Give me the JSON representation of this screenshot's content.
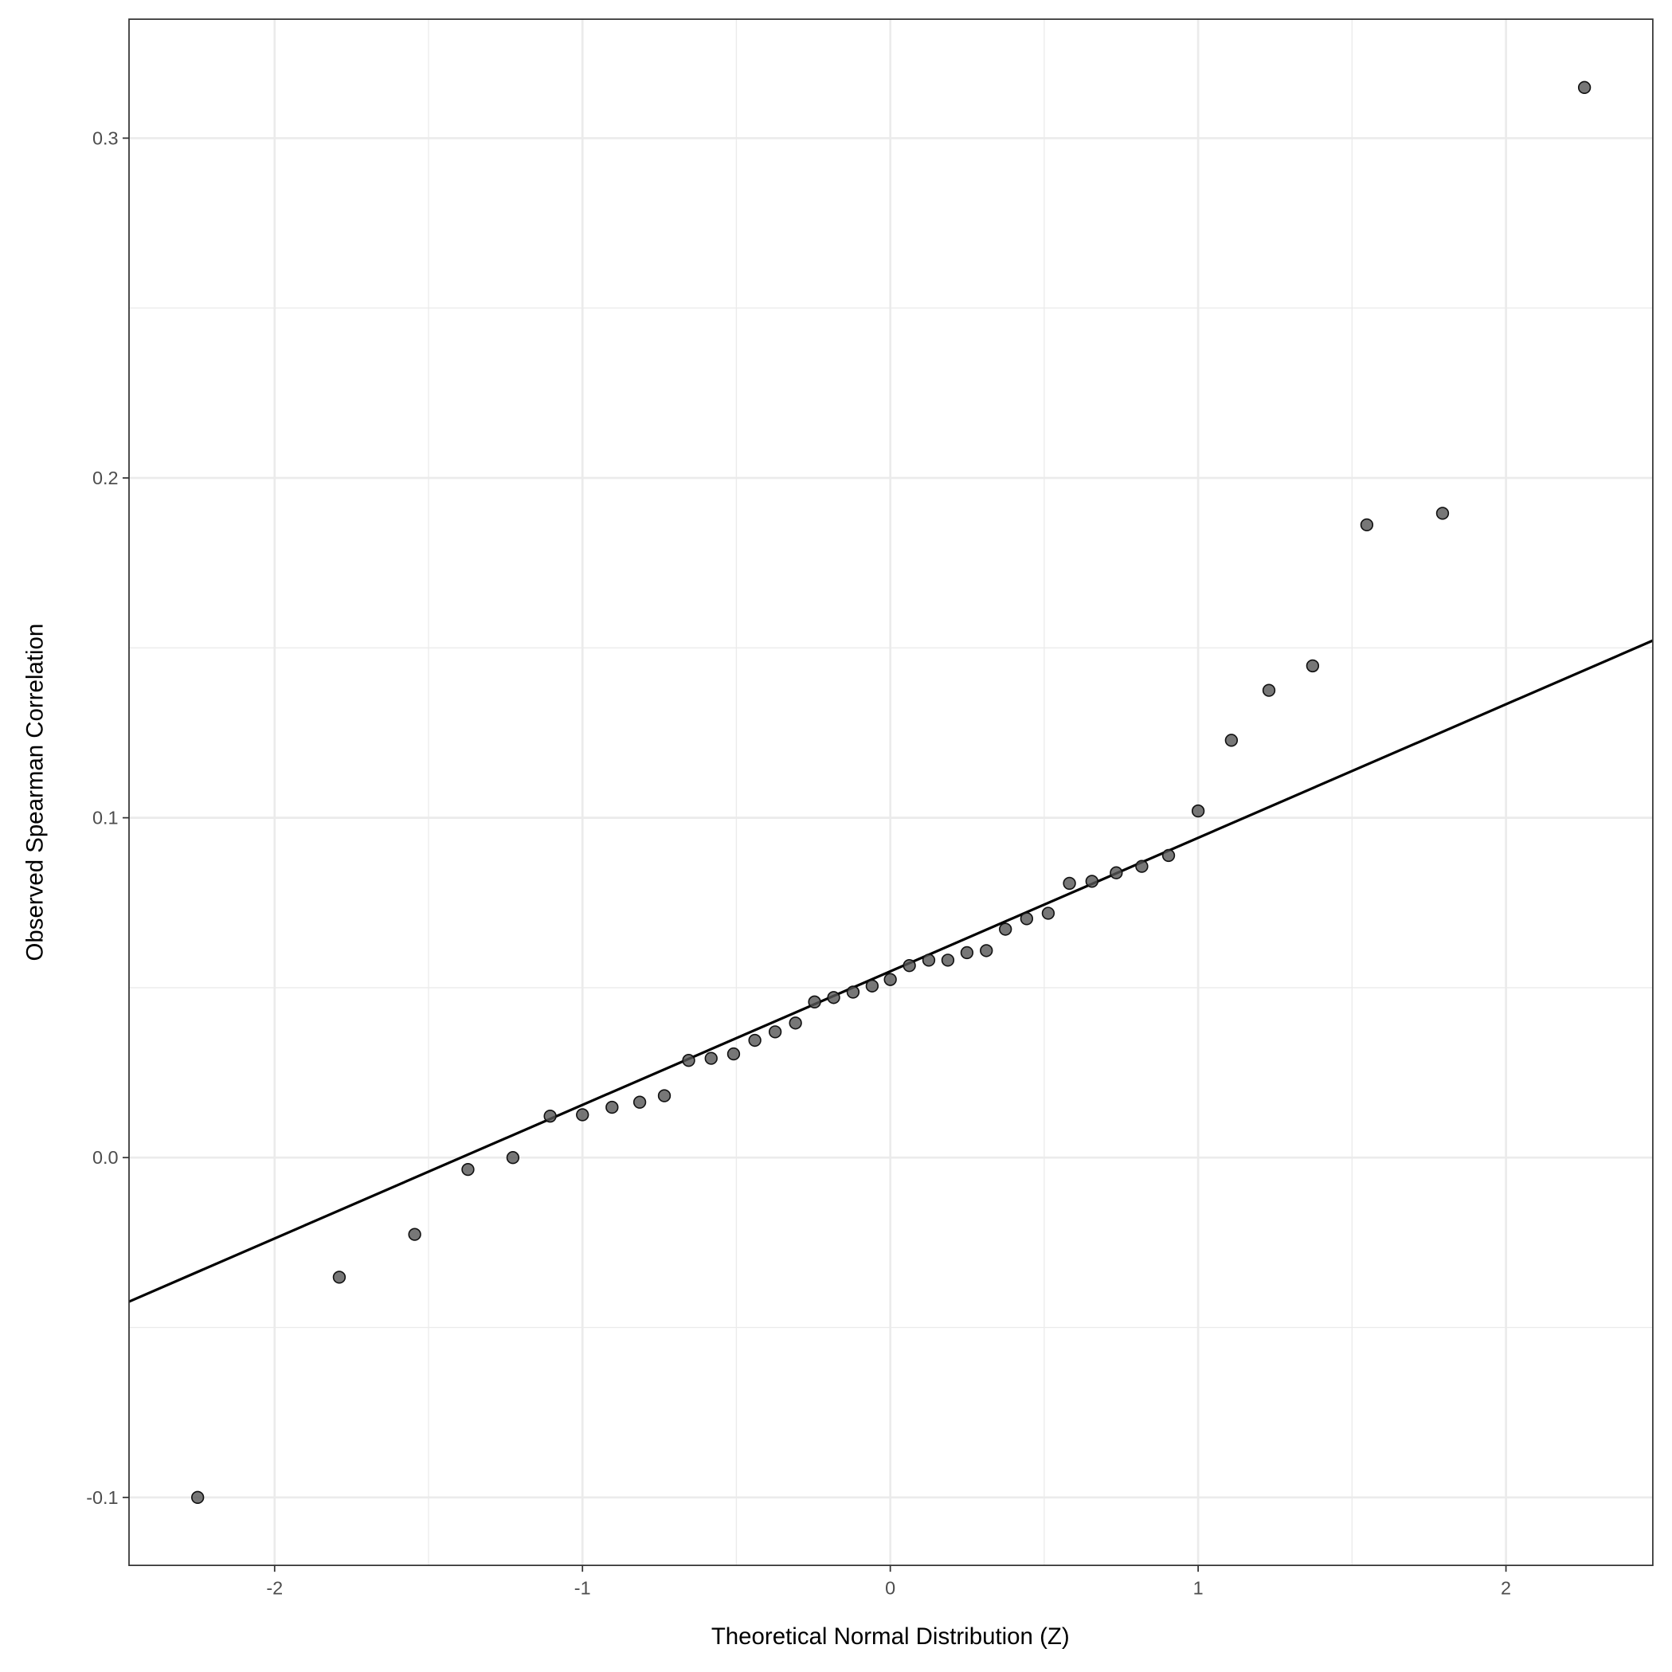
{
  "chart_data": {
    "type": "scatter",
    "title": "",
    "xlabel": "Theoretical Normal Distribution (Z)",
    "ylabel": "Observed Spearman Correlation",
    "xlim": [
      -2.473,
      2.477
    ],
    "ylim": [
      -0.12,
      0.335
    ],
    "grid": true,
    "x_ticks": [
      -2,
      -1,
      0,
      1,
      2
    ],
    "x_tick_labels": [
      "-2",
      "-1",
      "0",
      "1",
      "2"
    ],
    "y_ticks": [
      -0.1,
      0.0,
      0.1,
      0.2,
      0.3
    ],
    "y_tick_labels": [
      "-0.1",
      "0.0",
      "0.1",
      "0.2",
      "0.3"
    ],
    "x_minor": [
      -1.5,
      -0.5,
      0.5,
      1.5
    ],
    "y_minor": [
      -0.05,
      0.05,
      0.15,
      0.25
    ],
    "point_color": "#555555",
    "line_color": "#000000",
    "reference_line": {
      "slope": 0.0393,
      "intercept": 0.0548
    },
    "points": [
      [
        -2.25,
        -0.1
      ],
      [
        -1.79,
        -0.0352
      ],
      [
        -1.545,
        -0.0226
      ],
      [
        -1.372,
        -0.0035
      ],
      [
        -1.226,
        0.0
      ],
      [
        -1.105,
        0.0122
      ],
      [
        -1.0,
        0.0126
      ],
      [
        -0.904,
        0.0148
      ],
      [
        -0.814,
        0.0163
      ],
      [
        -0.734,
        0.0182
      ],
      [
        -0.655,
        0.0286
      ],
      [
        -0.582,
        0.0292
      ],
      [
        -0.509,
        0.0305
      ],
      [
        -0.44,
        0.0345
      ],
      [
        -0.374,
        0.037
      ],
      [
        -0.308,
        0.0396
      ],
      [
        -0.246,
        0.0458
      ],
      [
        -0.184,
        0.0471
      ],
      [
        -0.121,
        0.0487
      ],
      [
        -0.059,
        0.0505
      ],
      [
        0.0,
        0.0524
      ],
      [
        0.062,
        0.0565
      ],
      [
        0.125,
        0.0581
      ],
      [
        0.187,
        0.0581
      ],
      [
        0.249,
        0.0603
      ],
      [
        0.312,
        0.0609
      ],
      [
        0.374,
        0.0672
      ],
      [
        0.443,
        0.0703
      ],
      [
        0.513,
        0.0719
      ],
      [
        0.582,
        0.0807
      ],
      [
        0.655,
        0.0813
      ],
      [
        0.734,
        0.0838
      ],
      [
        0.817,
        0.0857
      ],
      [
        0.904,
        0.0889
      ],
      [
        1.0,
        0.102
      ],
      [
        1.108,
        0.1228
      ],
      [
        1.23,
        0.1375
      ],
      [
        1.372,
        0.1447
      ],
      [
        1.548,
        0.1862
      ],
      [
        1.794,
        0.1896
      ],
      [
        2.255,
        0.3149
      ]
    ]
  }
}
